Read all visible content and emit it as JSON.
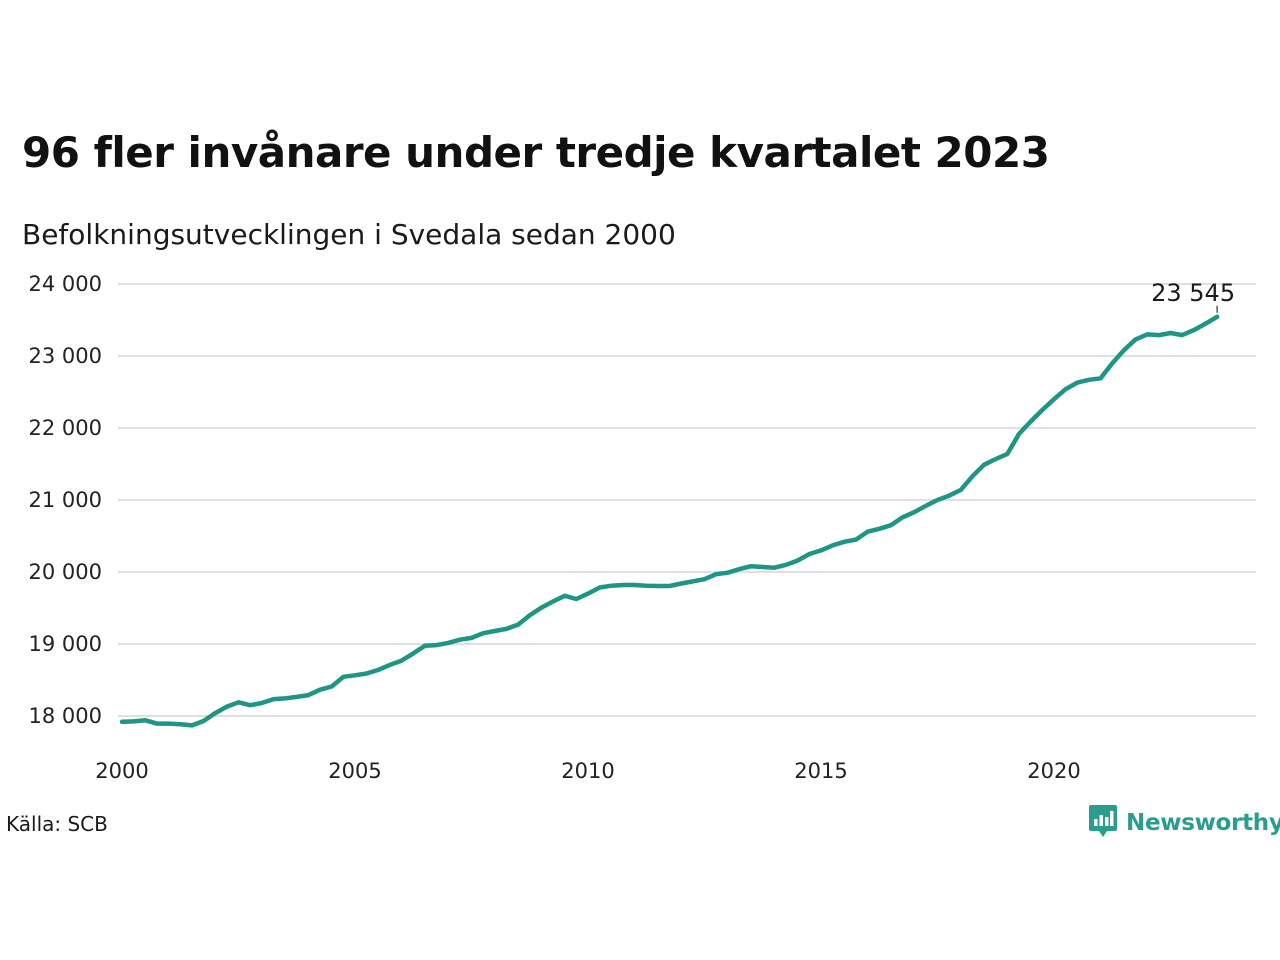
{
  "title": "96 fler invånare under tredje kvartalet 2023",
  "subtitle": "Befolkningsutvecklingen i Svedala sedan 2000",
  "source": "Källa: SCB",
  "brand": {
    "name": "Newsworthy",
    "icon": "newsworthy-logo-icon",
    "color": "#2a9d8f"
  },
  "colors": {
    "line": "#1f9585",
    "grid": "#e0e0e4",
    "text": "#111111"
  },
  "chart_data": {
    "type": "line",
    "title": "96 fler invånare under tredje kvartalet 2023",
    "subtitle": "Befolkningsutvecklingen i Svedala sedan 2000",
    "xlabel": "",
    "ylabel": "",
    "xlim": [
      2000,
      2024.5
    ],
    "ylim": [
      17600,
      24100
    ],
    "x_ticks": [
      2000,
      2005,
      2010,
      2015,
      2020
    ],
    "x_tick_labels": [
      "2000",
      "2005",
      "2010",
      "2015",
      "2020"
    ],
    "y_ticks": [
      18000,
      19000,
      20000,
      21000,
      22000,
      23000,
      24000
    ],
    "y_tick_labels": [
      "18 000",
      "19 000",
      "20 000",
      "21 000",
      "22 000",
      "23 000",
      "24 000"
    ],
    "grid": true,
    "end_label": "23 545",
    "series": [
      {
        "color": "#1f9585",
        "x": [
          2000.0,
          2000.25,
          2000.5,
          2000.75,
          2001.0,
          2001.25,
          2001.5,
          2001.75,
          2002.0,
          2002.25,
          2002.5,
          2002.75,
          2003.0,
          2003.25,
          2003.5,
          2003.75,
          2004.0,
          2004.25,
          2004.5,
          2004.75,
          2005.0,
          2005.25,
          2005.5,
          2005.75,
          2006.0,
          2006.25,
          2006.5,
          2006.75,
          2007.0,
          2007.25,
          2007.5,
          2007.75,
          2008.0,
          2008.25,
          2008.5,
          2008.75,
          2009.0,
          2009.25,
          2009.5,
          2009.75,
          2010.0,
          2010.25,
          2010.5,
          2010.75,
          2011.0,
          2011.25,
          2011.5,
          2011.75,
          2012.0,
          2012.25,
          2012.5,
          2012.75,
          2013.0,
          2013.25,
          2013.5,
          2013.75,
          2014.0,
          2014.25,
          2014.5,
          2014.75,
          2015.0,
          2015.25,
          2015.5,
          2015.75,
          2016.0,
          2016.25,
          2016.5,
          2016.75,
          2017.0,
          2017.25,
          2017.5,
          2017.75,
          2018.0,
          2018.25,
          2018.5,
          2018.75,
          2019.0,
          2019.25,
          2019.5,
          2019.75,
          2020.0,
          2020.25,
          2020.5,
          2020.75,
          2021.0,
          2021.25,
          2021.5,
          2021.75,
          2022.0,
          2022.25,
          2022.5,
          2022.75,
          2023.0,
          2023.25,
          2023.5
        ],
        "values": [
          17920,
          17925,
          17940,
          17895,
          17895,
          17885,
          17870,
          17930,
          18040,
          18130,
          18190,
          18150,
          18180,
          18235,
          18245,
          18265,
          18290,
          18365,
          18410,
          18545,
          18565,
          18590,
          18640,
          18710,
          18770,
          18870,
          18975,
          18985,
          19015,
          19060,
          19085,
          19150,
          19180,
          19210,
          19270,
          19400,
          19505,
          19590,
          19670,
          19625,
          19700,
          19785,
          19810,
          19820,
          19820,
          19810,
          19805,
          19805,
          19840,
          19870,
          19900,
          19970,
          19990,
          20040,
          20080,
          20070,
          20060,
          20100,
          20160,
          20250,
          20300,
          20370,
          20420,
          20450,
          20560,
          20600,
          20650,
          20760,
          20830,
          20920,
          21000,
          21060,
          21140,
          21330,
          21490,
          21570,
          21640,
          21920,
          22090,
          22250,
          22400,
          22540,
          22630,
          22670,
          22690,
          22900,
          23080,
          23230,
          23300,
          23290,
          23320,
          23290,
          23360,
          23449,
          23545
        ]
      }
    ]
  }
}
